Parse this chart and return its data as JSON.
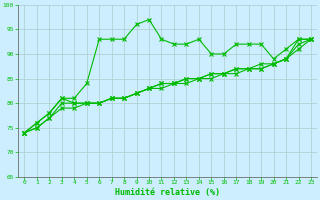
{
  "title": "",
  "xlabel": "Humidité relative (%)",
  "ylabel": "",
  "bg_color": "#cceeff",
  "grid_color": "#aacccc",
  "line_color": "#00bb00",
  "xlim": [
    -0.5,
    23.5
  ],
  "ylim": [
    65,
    100
  ],
  "xticks": [
    0,
    1,
    2,
    3,
    4,
    5,
    6,
    7,
    8,
    9,
    10,
    11,
    12,
    13,
    14,
    15,
    16,
    17,
    18,
    19,
    20,
    21,
    22,
    23
  ],
  "yticks": [
    65,
    70,
    75,
    80,
    85,
    90,
    95,
    100
  ],
  "line1_y": [
    74,
    76,
    78,
    81,
    81,
    84,
    93,
    93,
    93,
    96,
    97,
    93,
    92,
    92,
    93,
    90,
    90,
    92,
    92,
    92,
    89,
    91,
    93,
    93
  ],
  "line2_y": [
    74,
    76,
    78,
    81,
    80,
    80,
    80,
    81,
    81,
    82,
    83,
    84,
    84,
    85,
    85,
    86,
    86,
    87,
    87,
    88,
    88,
    89,
    93,
    93
  ],
  "line3_y": [
    74,
    75,
    77,
    80,
    80,
    80,
    80,
    81,
    81,
    82,
    83,
    84,
    84,
    85,
    85,
    86,
    86,
    87,
    87,
    87,
    88,
    89,
    92,
    93
  ],
  "line4_y": [
    74,
    75,
    77,
    79,
    79,
    80,
    80,
    81,
    81,
    82,
    83,
    83,
    84,
    84,
    85,
    85,
    86,
    86,
    87,
    87,
    88,
    89,
    91,
    93
  ]
}
